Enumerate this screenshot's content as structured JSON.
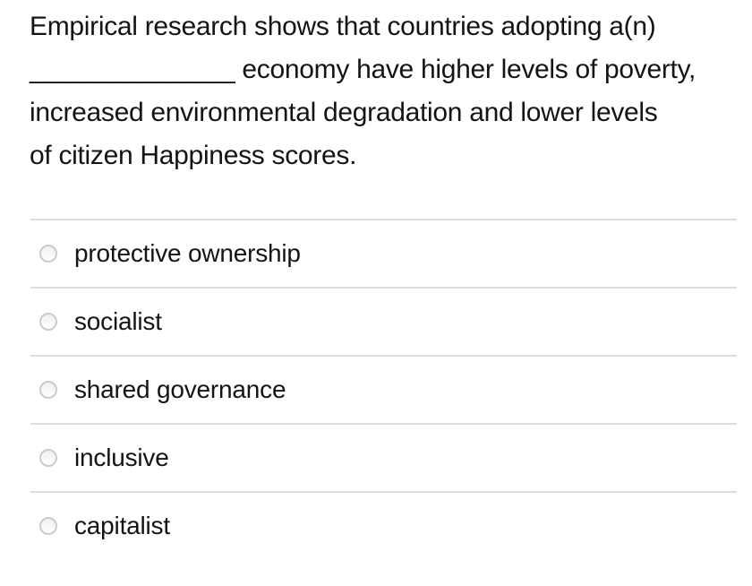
{
  "question": {
    "lines": [
      "Empirical research shows that countries adopting a(n)",
      "______________ economy have higher levels of poverty,",
      "increased environmental degradation and lower levels",
      "of citizen Happiness scores."
    ]
  },
  "options": [
    {
      "label": "protective ownership"
    },
    {
      "label": "socialist"
    },
    {
      "label": "shared governance"
    },
    {
      "label": "inclusive"
    },
    {
      "label": "capitalist"
    }
  ],
  "colors": {
    "text": "#141414",
    "divider": "#dcdcdc",
    "radio_border": "#cbcbcb",
    "background": "#ffffff"
  }
}
